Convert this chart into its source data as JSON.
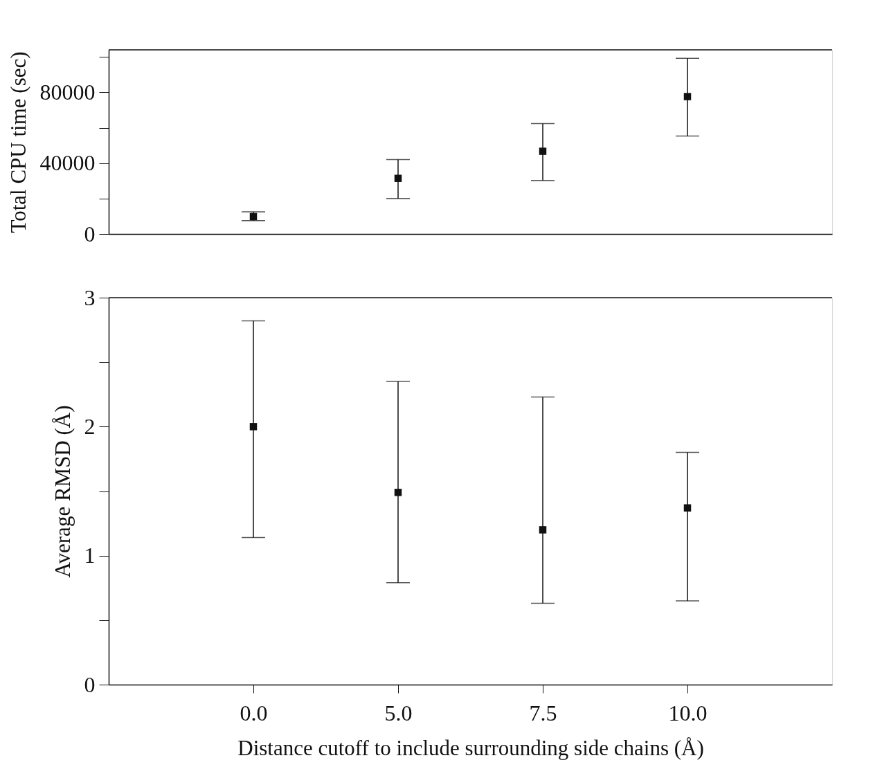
{
  "chart_data": [
    {
      "type": "scatter",
      "ylabel": "Total CPU time (sec)",
      "categories": [
        "0.0",
        "5.0",
        "7.5",
        "10.0"
      ],
      "tick_labels": "y",
      "marker": "square",
      "grid": false,
      "legend": false,
      "series": [
        {
          "color": "#111111",
          "values": [
            9800,
            31400,
            46700,
            77600
          ],
          "errors": [
            [
              7500,
              12500
            ],
            [
              20000,
              42000
            ],
            [
              30200,
              62400
            ],
            [
              55300,
              99200
            ]
          ]
        }
      ],
      "ylim": [
        0,
        104000
      ],
      "yticks": [
        0,
        {
          "value": 20000,
          "label": null
        },
        40000,
        {
          "value": 60000,
          "label": null
        },
        80000,
        {
          "value": 100000,
          "label": null
        }
      ]
    },
    {
      "type": "scatter",
      "ylabel": "Average RMSD (Å)",
      "xlabel": "Distance cutoff to include surrounding side chains (Å)",
      "categories": [
        "0.0",
        "5.0",
        "7.5",
        "10.0"
      ],
      "marker": "square",
      "grid": false,
      "legend": false,
      "series": [
        {
          "color": "#111111",
          "values": [
            2.0,
            1.49,
            1.2,
            1.37
          ],
          "errors": [
            [
              1.14,
              2.82
            ],
            [
              0.79,
              2.35
            ],
            [
              0.63,
              2.23
            ],
            [
              0.65,
              1.8
            ]
          ]
        }
      ],
      "ylim": [
        0,
        3
      ],
      "yticks": [
        0,
        {
          "value": 0.5,
          "label": null
        },
        1,
        {
          "value": 1.5,
          "label": null
        },
        2,
        {
          "value": 2.5,
          "label": null
        },
        3
      ]
    }
  ]
}
